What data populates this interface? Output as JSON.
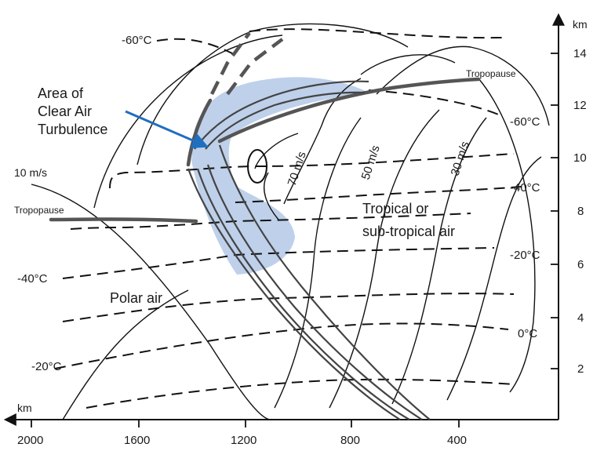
{
  "units": {
    "x_axis": "km",
    "y_axis": "km"
  },
  "x_ticks": [
    "2000",
    "1600",
    "1200",
    "800",
    "400"
  ],
  "y_ticks": [
    "2",
    "4",
    "6",
    "8",
    "10",
    "12",
    "14"
  ],
  "labels": {
    "cat_area": "Area of\nClear Air\nTurbulence",
    "tropopause_right": "Tropopause",
    "tropopause_left": "Tropopause",
    "tropical": "Tropical or\nsub-tropical air",
    "polar": "Polar air",
    "wind_10": "10 m/s",
    "wind_70": "70 m/s",
    "wind_50": "50 m/s",
    "wind_30": "30 m/s"
  },
  "temperatures": {
    "top_left": "-60°C",
    "right_upper": "-60°C",
    "right_mid": "-40°C",
    "right_lower": "-20°C",
    "right_bottom": "0°C",
    "left_upper": "-40°C",
    "left_lower": "-20°C"
  },
  "colors": {
    "cat_region": "#b8cce8",
    "arrow": "#1f6fc0",
    "tropopause_band": "#555555"
  }
}
